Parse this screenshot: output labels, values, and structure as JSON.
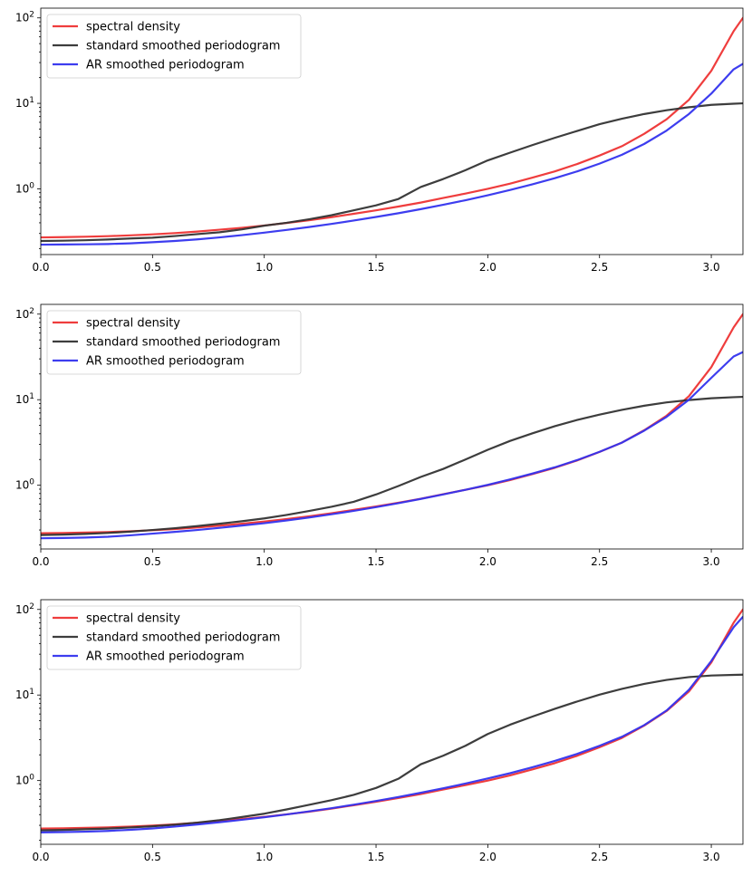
{
  "chart_data": [
    {
      "type": "line",
      "xlim": [
        0,
        3.1416
      ],
      "yscale": "log",
      "ylim": [
        0.17,
        130
      ],
      "x_ticks": [
        "0.0",
        "0.5",
        "1.0",
        "1.5",
        "2.0",
        "2.5",
        "3.0"
      ],
      "x_tick_values": [
        0,
        0.5,
        1.0,
        1.5,
        2.0,
        2.5,
        3.0
      ],
      "y_ticks": [
        "10^0",
        "10^1",
        "10^2"
      ],
      "legend_position": "upper-left",
      "x": [
        0,
        0.1,
        0.2,
        0.3,
        0.4,
        0.5,
        0.6,
        0.7,
        0.8,
        0.9,
        1.0,
        1.1,
        1.2,
        1.3,
        1.4,
        1.5,
        1.6,
        1.7,
        1.8,
        1.9,
        2.0,
        2.1,
        2.2,
        2.3,
        2.4,
        2.5,
        2.6,
        2.7,
        2.8,
        2.9,
        3.0,
        3.1,
        3.1416
      ],
      "series": [
        {
          "name": "spectral density",
          "color": "#ee3333",
          "values": [
            0.27,
            0.272,
            0.275,
            0.279,
            0.285,
            0.293,
            0.303,
            0.316,
            0.332,
            0.35,
            0.372,
            0.398,
            0.428,
            0.465,
            0.51,
            0.56,
            0.62,
            0.69,
            0.78,
            0.88,
            1.0,
            1.15,
            1.35,
            1.6,
            1.95,
            2.45,
            3.15,
            4.4,
            6.5,
            11.0,
            24.0,
            70.0,
            100.0
          ]
        },
        {
          "name": "standard smoothed periodogram",
          "color": "#333333",
          "values": [
            0.245,
            0.247,
            0.25,
            0.255,
            0.262,
            0.268,
            0.28,
            0.295,
            0.31,
            0.335,
            0.37,
            0.4,
            0.44,
            0.49,
            0.56,
            0.64,
            0.76,
            1.05,
            1.3,
            1.65,
            2.15,
            2.65,
            3.25,
            3.95,
            4.75,
            5.7,
            6.6,
            7.5,
            8.3,
            9.0,
            9.6,
            9.9,
            10.0
          ]
        },
        {
          "name": "AR smoothed periodogram",
          "color": "#3333ee",
          "values": [
            0.222,
            0.223,
            0.224,
            0.226,
            0.23,
            0.237,
            0.245,
            0.256,
            0.27,
            0.287,
            0.307,
            0.33,
            0.357,
            0.388,
            0.425,
            0.468,
            0.518,
            0.578,
            0.65,
            0.735,
            0.84,
            0.97,
            1.13,
            1.33,
            1.6,
            1.97,
            2.5,
            3.35,
            4.8,
            7.5,
            13.0,
            25.0,
            29.0
          ]
        }
      ]
    },
    {
      "type": "line",
      "xlim": [
        0,
        3.1416
      ],
      "yscale": "log",
      "ylim": [
        0.18,
        130
      ],
      "x_ticks": [
        "0.0",
        "0.5",
        "1.0",
        "1.5",
        "2.0",
        "2.5",
        "3.0"
      ],
      "x_tick_values": [
        0,
        0.5,
        1.0,
        1.5,
        2.0,
        2.5,
        3.0
      ],
      "y_ticks": [
        "10^0",
        "10^1",
        "10^2"
      ],
      "legend_position": "upper-left",
      "x": [
        0,
        0.1,
        0.2,
        0.3,
        0.4,
        0.5,
        0.6,
        0.7,
        0.8,
        0.9,
        1.0,
        1.1,
        1.2,
        1.3,
        1.4,
        1.5,
        1.6,
        1.7,
        1.8,
        1.9,
        2.0,
        2.1,
        2.2,
        2.3,
        2.4,
        2.5,
        2.6,
        2.7,
        2.8,
        2.9,
        3.0,
        3.1,
        3.1416
      ],
      "series": [
        {
          "name": "spectral density",
          "color": "#ee3333",
          "values": [
            0.275,
            0.277,
            0.28,
            0.284,
            0.29,
            0.298,
            0.308,
            0.321,
            0.337,
            0.355,
            0.377,
            0.403,
            0.433,
            0.47,
            0.515,
            0.565,
            0.625,
            0.695,
            0.785,
            0.885,
            1.0,
            1.15,
            1.35,
            1.6,
            1.95,
            2.45,
            3.15,
            4.4,
            6.5,
            11.0,
            24.0,
            70.0,
            100.0
          ]
        },
        {
          "name": "standard smoothed periodogram",
          "color": "#333333",
          "values": [
            0.262,
            0.265,
            0.27,
            0.277,
            0.287,
            0.3,
            0.315,
            0.333,
            0.355,
            0.38,
            0.41,
            0.45,
            0.5,
            0.56,
            0.64,
            0.78,
            0.98,
            1.25,
            1.55,
            2.0,
            2.6,
            3.3,
            4.05,
            4.9,
            5.8,
            6.7,
            7.6,
            8.5,
            9.3,
            9.9,
            10.4,
            10.7,
            10.8
          ]
        },
        {
          "name": "AR smoothed periodogram",
          "color": "#3333ee",
          "values": [
            0.24,
            0.242,
            0.245,
            0.25,
            0.26,
            0.272,
            0.285,
            0.3,
            0.318,
            0.338,
            0.36,
            0.388,
            0.42,
            0.458,
            0.502,
            0.555,
            0.618,
            0.692,
            0.78,
            0.885,
            1.01,
            1.17,
            1.37,
            1.62,
            1.97,
            2.46,
            3.15,
            4.35,
            6.3,
            10.0,
            18.0,
            32.0,
            36.0
          ]
        }
      ]
    },
    {
      "type": "line",
      "xlim": [
        0,
        3.1416
      ],
      "yscale": "log",
      "ylim": [
        0.18,
        130
      ],
      "x_ticks": [
        "0.0",
        "0.5",
        "1.0",
        "1.5",
        "2.0",
        "2.5",
        "3.0"
      ],
      "x_tick_values": [
        0,
        0.5,
        1.0,
        1.5,
        2.0,
        2.5,
        3.0
      ],
      "y_ticks": [
        "10^0",
        "10^1",
        "10^2"
      ],
      "legend_position": "upper-left",
      "x": [
        0,
        0.1,
        0.2,
        0.3,
        0.4,
        0.5,
        0.6,
        0.7,
        0.8,
        0.9,
        1.0,
        1.1,
        1.2,
        1.3,
        1.4,
        1.5,
        1.6,
        1.7,
        1.8,
        1.9,
        2.0,
        2.1,
        2.2,
        2.3,
        2.4,
        2.5,
        2.6,
        2.7,
        2.8,
        2.9,
        3.0,
        3.1,
        3.1416
      ],
      "series": [
        {
          "name": "spectral density",
          "color": "#ee3333",
          "values": [
            0.275,
            0.277,
            0.28,
            0.284,
            0.29,
            0.298,
            0.308,
            0.321,
            0.337,
            0.355,
            0.377,
            0.403,
            0.433,
            0.47,
            0.515,
            0.565,
            0.625,
            0.695,
            0.785,
            0.885,
            1.0,
            1.15,
            1.35,
            1.6,
            1.95,
            2.45,
            3.15,
            4.4,
            6.5,
            11.0,
            24.0,
            70.0,
            100.0
          ]
        },
        {
          "name": "standard smoothed periodogram",
          "color": "#333333",
          "values": [
            0.262,
            0.265,
            0.27,
            0.275,
            0.283,
            0.292,
            0.305,
            0.322,
            0.345,
            0.375,
            0.41,
            0.46,
            0.52,
            0.59,
            0.68,
            0.82,
            1.05,
            1.55,
            1.95,
            2.55,
            3.5,
            4.5,
            5.6,
            6.9,
            8.4,
            10.1,
            11.8,
            13.5,
            15.0,
            16.2,
            16.9,
            17.2,
            17.3
          ]
        },
        {
          "name": "AR smoothed periodogram",
          "color": "#3333ee",
          "values": [
            0.248,
            0.25,
            0.253,
            0.258,
            0.266,
            0.276,
            0.29,
            0.307,
            0.326,
            0.348,
            0.373,
            0.402,
            0.436,
            0.475,
            0.522,
            0.577,
            0.642,
            0.72,
            0.812,
            0.923,
            1.06,
            1.22,
            1.43,
            1.7,
            2.05,
            2.55,
            3.25,
            4.45,
            6.6,
            11.5,
            25.0,
            62.0,
            82.0
          ]
        }
      ]
    }
  ]
}
